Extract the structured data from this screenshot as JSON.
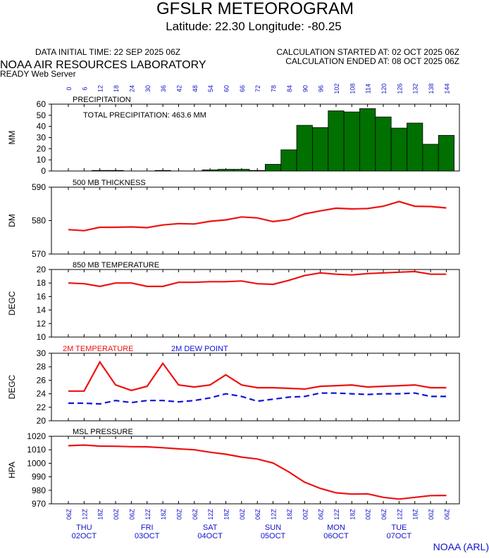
{
  "header": {
    "title": "GFSLR METEOROGRAM",
    "subtitle": "Latitude: 22.30 Longitude: -80.25",
    "init_time": "DATA INITIAL TIME: 22 SEP 2025 06Z",
    "calc_started": "CALCULATION STARTED AT: 02 OCT 2025 06Z",
    "calc_ended": "CALCULATION ENDED AT: 08 OCT 2025 06Z",
    "lab": "NOAA AIR RESOURCES LABORATORY",
    "server": "READY Web Server"
  },
  "footer": {
    "credit": "NOAA (ARL)"
  },
  "colors": {
    "bar": "#007000",
    "red": "#ee1111",
    "blue": "#1111dd",
    "axis_blue": "#1010cc"
  },
  "chart_data": {
    "type": "meteogram",
    "forecast_hours": [
      0,
      6,
      12,
      18,
      24,
      30,
      36,
      42,
      48,
      54,
      60,
      66,
      72,
      78,
      84,
      90,
      96,
      102,
      108,
      114,
      120,
      126,
      132,
      138,
      144
    ],
    "time_labels": [
      "06Z",
      "12Z",
      "18Z",
      "00Z",
      "06Z",
      "12Z",
      "18Z",
      "00Z",
      "06Z",
      "12Z",
      "18Z",
      "00Z",
      "06Z",
      "12Z",
      "18Z",
      "00Z",
      "06Z",
      "12Z",
      "18Z",
      "00Z",
      "06Z",
      "12Z",
      "18Z",
      "00Z",
      "06Z"
    ],
    "days": [
      {
        "day": "THU",
        "date": "02OCT",
        "at": 1
      },
      {
        "day": "FRI",
        "date": "03OCT",
        "at": 5
      },
      {
        "day": "SAT",
        "date": "04OCT",
        "at": 9
      },
      {
        "day": "SUN",
        "date": "05OCT",
        "at": 13
      },
      {
        "day": "MON",
        "date": "06OCT",
        "at": 17
      },
      {
        "day": "TUE",
        "date": "07OCT",
        "at": 21
      }
    ],
    "panels": [
      {
        "type": "bar",
        "title": "PRECIPITATION",
        "note": "TOTAL PRECIPITATION: 463.6 MM",
        "ylabel": "MM",
        "ylim": [
          0,
          60
        ],
        "yticks": [
          0,
          10,
          20,
          30,
          40,
          50,
          60
        ],
        "series": [
          {
            "values": [
              0,
              0,
              0.5,
              0.5,
              0,
              0,
              0.5,
              0,
              0,
              1,
              1.5,
              1.5,
              0.5,
              6,
              19,
              41,
              39,
              54,
              53,
              56,
              48.5,
              38.5,
              43,
              24,
              32
            ]
          }
        ]
      },
      {
        "type": "line",
        "title": "500 MB  THICKNESS",
        "ylabel": "DM",
        "ylim": [
          570,
          590
        ],
        "yticks": [
          570,
          580,
          590
        ],
        "series": [
          {
            "values": [
              577.3,
              577,
              578,
              578,
              578.1,
              577.9,
              578.7,
              579.1,
              579,
              579.8,
              580.2,
              581.1,
              580.8,
              579.7,
              580.3,
              582,
              582.9,
              583.7,
              583.5,
              583.6,
              584.3,
              585.7,
              584.3,
              584.2,
              583.8
            ]
          }
        ]
      },
      {
        "type": "line",
        "title": "850 MB  TEMPERATURE",
        "ylabel": "DEGC",
        "ylim": [
          10,
          20
        ],
        "yticks": [
          10,
          12,
          14,
          16,
          18,
          20
        ],
        "series": [
          {
            "values": [
              18,
              17.9,
              17.5,
              18,
              18,
              17.5,
              17.5,
              18.1,
              18.1,
              18.2,
              18.2,
              18.3,
              17.9,
              17.8,
              18.4,
              19.1,
              19.5,
              19.3,
              19.2,
              19.4,
              19.5,
              19.6,
              19.7,
              19.3,
              19.3
            ]
          }
        ]
      },
      {
        "type": "line",
        "ylabel": "DEGC",
        "ylim": [
          20,
          30
        ],
        "yticks": [
          20,
          22,
          24,
          26,
          28,
          30
        ],
        "series": [
          {
            "name": "2M TEMPERATURE",
            "values": [
              24.4,
              24.4,
              28.7,
              25.3,
              24.5,
              25.1,
              28.5,
              25.3,
              25,
              25.3,
              26.8,
              25.3,
              24.9,
              24.9,
              24.8,
              24.7,
              25.1,
              25.2,
              25.3,
              25,
              25.1,
              25.2,
              25.3,
              24.9,
              24.9
            ]
          },
          {
            "name": "2M  DEW POINT",
            "values": [
              22.6,
              22.6,
              22.5,
              23,
              22.7,
              23,
              23,
              22.8,
              23,
              23.4,
              24,
              23.6,
              22.9,
              23.2,
              23.5,
              23.6,
              24.1,
              24.1,
              24,
              23.9,
              24,
              24,
              24.1,
              23.6,
              23.6
            ]
          }
        ]
      },
      {
        "type": "line",
        "title": "MSL PRESSURE",
        "ylabel": "HPA",
        "ylim": [
          970,
          1020
        ],
        "yticks": [
          970,
          980,
          990,
          1000,
          1010,
          1020
        ],
        "series": [
          {
            "values": [
              1013,
              1013.5,
              1012.7,
              1012.6,
              1012.3,
              1012.2,
              1011.5,
              1010.7,
              1010,
              1008.2,
              1006.7,
              1004.6,
              1003.2,
              1000.2,
              993.6,
              986,
              981.4,
              978.1,
              977.2,
              977.4,
              974.8,
              973.5,
              974.8,
              976.1,
              976.2
            ]
          }
        ]
      }
    ]
  }
}
